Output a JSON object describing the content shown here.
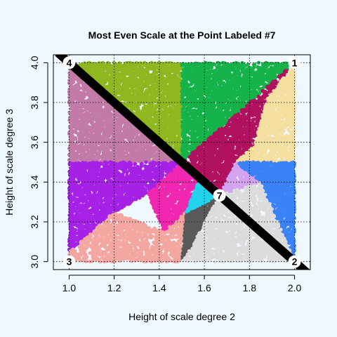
{
  "chart_data": {
    "type": "scatter",
    "title": "Most Even Scale at the Point Labeled #7",
    "xlabel": "Height of scale degree 2",
    "ylabel": "Height of scale degree 3",
    "xlim": [
      0.93,
      2.07
    ],
    "ylim": [
      2.96,
      4.04
    ],
    "xticks": [
      1.0,
      1.2,
      1.4,
      1.6,
      1.8,
      2.0
    ],
    "xtick_labels": [
      "1.0",
      "1.2",
      "1.4",
      "1.6",
      "1.8",
      "2.0"
    ],
    "yticks": [
      3.0,
      3.2,
      3.4,
      3.6,
      3.8,
      4.0
    ],
    "ytick_labels": [
      "3.0",
      "3.2",
      "3.4",
      "3.6",
      "3.8",
      "4.0"
    ],
    "grid": true,
    "diagonal_line": {
      "from": [
        0.95,
        4.05
      ],
      "to": [
        2.07,
        2.93
      ],
      "color": "#000000"
    },
    "labeled_points": [
      {
        "label": "1",
        "x": 2.0,
        "y": 4.0
      },
      {
        "label": "2",
        "x": 2.0,
        "y": 3.0
      },
      {
        "label": "3",
        "x": 1.0,
        "y": 3.0
      },
      {
        "label": "4",
        "x": 1.0,
        "y": 4.0
      },
      {
        "label": "7",
        "x": 1.667,
        "y": 3.333
      }
    ],
    "regions": [
      {
        "color": "#8fb820",
        "polygon": [
          [
            1.0,
            4.0
          ],
          [
            1.5,
            4.0
          ],
          [
            1.5,
            3.5
          ]
        ]
      },
      {
        "color": "#16b34a",
        "polygon": [
          [
            1.5,
            4.0
          ],
          [
            2.0,
            4.0
          ],
          [
            1.5,
            3.5
          ]
        ]
      },
      {
        "color": "#b0125f",
        "polygon": [
          [
            2.0,
            4.0
          ],
          [
            1.5,
            3.5
          ],
          [
            1.667,
            3.333
          ],
          [
            1.82,
            3.58
          ],
          [
            1.88,
            3.82
          ]
        ]
      },
      {
        "color": "#f5dfa0",
        "polygon": [
          [
            2.0,
            4.0
          ],
          [
            1.88,
            3.82
          ],
          [
            1.82,
            3.58
          ],
          [
            1.74,
            3.5
          ],
          [
            2.0,
            3.5
          ]
        ]
      },
      {
        "color": "#c27aa6",
        "polygon": [
          [
            1.0,
            4.0
          ],
          [
            1.5,
            3.5
          ],
          [
            1.0,
            3.5
          ]
        ]
      },
      {
        "color": "#a621e6",
        "polygon": [
          [
            1.0,
            3.5
          ],
          [
            1.5,
            3.5
          ],
          [
            1.35,
            3.34
          ],
          [
            1.2,
            3.25
          ],
          [
            1.0,
            3.05
          ]
        ]
      },
      {
        "color": "#f027b0",
        "polygon": [
          [
            1.5,
            3.5
          ],
          [
            1.667,
            3.333
          ],
          [
            1.52,
            3.25
          ],
          [
            1.42,
            3.15
          ],
          [
            1.35,
            3.34
          ]
        ]
      },
      {
        "color": "#f4a6a0",
        "polygon": [
          [
            1.0,
            3.05
          ],
          [
            1.0,
            3.0
          ],
          [
            1.5,
            3.0
          ],
          [
            1.57,
            3.13
          ],
          [
            1.52,
            3.25
          ],
          [
            1.42,
            3.15
          ],
          [
            1.2,
            3.25
          ]
        ]
      },
      {
        "color": "#5a5a5a",
        "polygon": [
          [
            1.52,
            3.25
          ],
          [
            1.667,
            3.333
          ],
          [
            1.57,
            3.13
          ],
          [
            1.5,
            3.0
          ]
        ]
      },
      {
        "color": "#22d3ee",
        "polygon": [
          [
            1.52,
            3.25
          ],
          [
            1.58,
            3.42
          ],
          [
            1.667,
            3.333
          ]
        ]
      },
      {
        "color": "#d3a3f0",
        "polygon": [
          [
            1.667,
            3.333
          ],
          [
            1.74,
            3.5
          ],
          [
            1.8,
            3.47
          ],
          [
            1.85,
            3.4
          ]
        ]
      },
      {
        "color": "#3b82f6",
        "polygon": [
          [
            1.74,
            3.5
          ],
          [
            2.0,
            3.5
          ],
          [
            2.0,
            3.0
          ],
          [
            1.85,
            3.4
          ]
        ]
      },
      {
        "color": "#dcdcdc",
        "polygon": [
          [
            1.5,
            3.0
          ],
          [
            2.0,
            3.0
          ],
          [
            1.85,
            3.4
          ],
          [
            1.667,
            3.333
          ],
          [
            1.57,
            3.13
          ]
        ]
      }
    ]
  }
}
